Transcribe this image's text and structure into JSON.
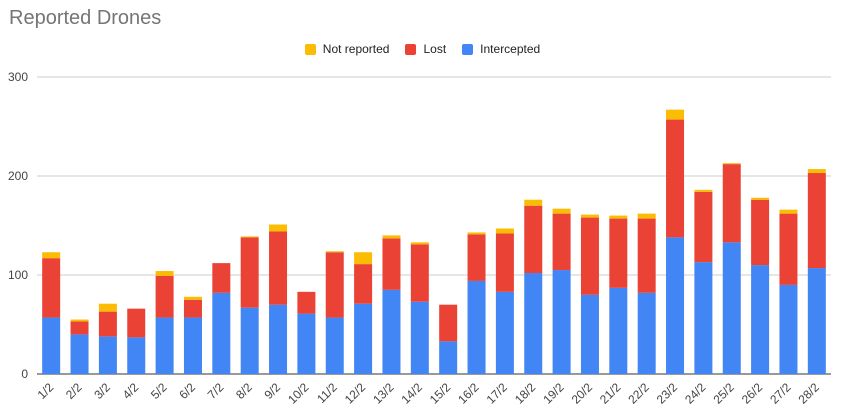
{
  "chart_data": {
    "type": "bar",
    "stacked": true,
    "title": "Reported Drones",
    "xlabel": "",
    "ylabel": "",
    "ylim": [
      0,
      300
    ],
    "yticks": [
      0,
      100,
      200,
      300
    ],
    "grid": true,
    "legend_position": "top",
    "categories": [
      "1/2",
      "2/2",
      "3/2",
      "4/2",
      "5/2",
      "6/2",
      "7/2",
      "8/2",
      "9/2",
      "10/2",
      "11/2",
      "12/2",
      "13/2",
      "14/2",
      "15/2",
      "16/2",
      "17/2",
      "18/2",
      "19/2",
      "20/2",
      "21/2",
      "22/2",
      "23/2",
      "24/2",
      "25/2",
      "26/2",
      "27/2",
      "28/2"
    ],
    "series": [
      {
        "name": "Intercepted",
        "color": "#4285f4",
        "values": [
          57,
          40,
          38,
          37,
          57,
          57,
          82,
          67,
          70,
          61,
          57,
          71,
          85,
          73,
          33,
          94,
          83,
          102,
          105,
          80,
          87,
          82,
          138,
          113,
          133,
          110,
          90,
          107
        ]
      },
      {
        "name": "Lost",
        "color": "#ea4335",
        "values": [
          60,
          13,
          25,
          29,
          42,
          18,
          30,
          71,
          74,
          22,
          66,
          40,
          52,
          58,
          37,
          47,
          59,
          68,
          57,
          78,
          70,
          75,
          119,
          71,
          79,
          66,
          72,
          96
        ]
      },
      {
        "name": "Not reported",
        "color": "#fbbc04",
        "values": [
          6,
          2,
          8,
          0,
          5,
          3,
          0,
          1,
          7,
          0,
          1,
          12,
          3,
          2,
          0,
          2,
          5,
          6,
          5,
          3,
          3,
          5,
          10,
          2,
          1,
          2,
          4,
          4
        ]
      }
    ],
    "legend_order": [
      "Not reported",
      "Lost",
      "Intercepted"
    ]
  }
}
